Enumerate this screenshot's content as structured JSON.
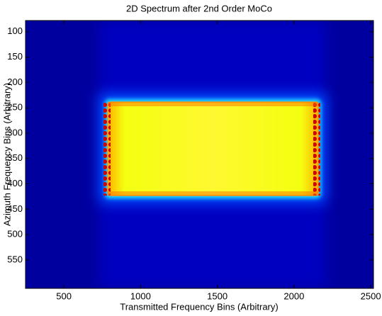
{
  "chart_data": {
    "type": "image",
    "title": "2D Spectrum after 2nd Order MoCo",
    "x_label": "Transmitted Frequency Bins (Arbitrary)",
    "y_label": "Azimuth Frequency Bins (Arbitrary)",
    "xlim": [
      250,
      2518
    ],
    "xticks": [
      500,
      1000,
      1500,
      2000,
      2500
    ],
    "ylim": [
      78,
      606
    ],
    "y_reversed": true,
    "yticks": [
      100,
      150,
      200,
      250,
      300,
      350,
      400,
      450,
      500,
      550
    ],
    "grid": false
  }
}
